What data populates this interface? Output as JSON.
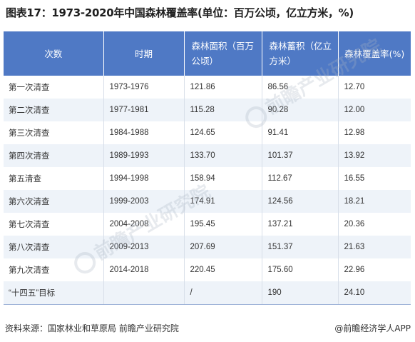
{
  "title": "图表17：1973-2020年中国森林覆盖率(单位：百万公顷，亿立方米，%)",
  "table": {
    "headers": [
      "次数",
      "时期",
      "森林面积（百万公顷）",
      "森林蓄积（亿立方米）",
      "森林覆盖率(%)"
    ],
    "rows": [
      [
        "第一次清查",
        "1973-1976",
        "121.86",
        "86.56",
        "12.70"
      ],
      [
        "第二次清查",
        "1977-1981",
        "115.28",
        "90.28",
        "12.00"
      ],
      [
        "第三次清查",
        "1984-1988",
        "124.65",
        "91.41",
        "12.98"
      ],
      [
        "第四次清查",
        "1989-1993",
        "133.70",
        "101.37",
        "13.92"
      ],
      [
        "第五清查",
        "1994-1998",
        "158.94",
        "112.67",
        "16.55"
      ],
      [
        "第六次清查",
        "1999-2003",
        "174.91",
        "124.56",
        "18.21"
      ],
      [
        "第七次清查",
        "2004-2008",
        "195.45",
        "137.21",
        "20.36"
      ],
      [
        "第八次清查",
        "2009-2013",
        "207.69",
        "151.37",
        "21.63"
      ],
      [
        "第九次清查",
        "2014-2018",
        "220.45",
        "175.60",
        "22.96"
      ],
      [
        "“十四五”目标",
        "",
        "/",
        "190",
        "24.10"
      ]
    ]
  },
  "footer": {
    "source": "资料来源：国家林业和草原局 前瞻产业研究院",
    "credit": "@前瞻经济学人APP"
  },
  "watermark": {
    "text": "前瞻产业研究院"
  }
}
